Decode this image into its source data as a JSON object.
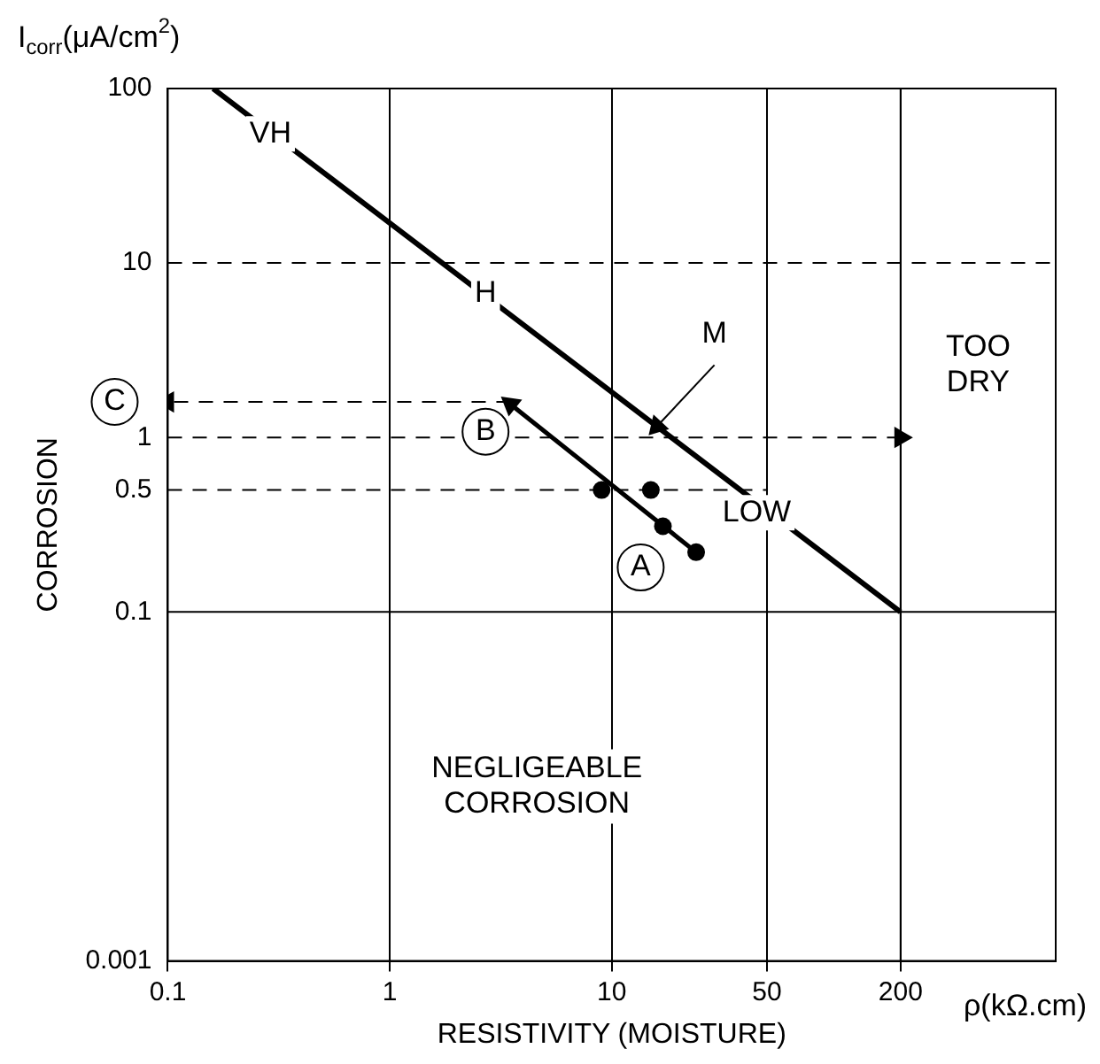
{
  "chart_data": {
    "type": "line",
    "xlabel": "RESISTIVITY (MOISTURE)",
    "ylabel": "CORROSION",
    "log": "xy",
    "xlim": [
      0.1,
      1000
    ],
    "ylim": [
      0.001,
      100
    ],
    "xticks": [
      0.1,
      1,
      10,
      50,
      200
    ],
    "yticks": [
      0.001,
      0.1,
      0.5,
      1,
      10,
      100
    ],
    "grid": "x",
    "legend": false,
    "series": [
      {
        "x": [
          0.16,
          200
        ],
        "values": [
          100,
          0.1
        ],
        "color": "#000000"
      },
      {
        "x": [
          24,
          3.5
        ],
        "values": [
          0.22,
          1.55
        ],
        "color": "#000000"
      },
      {
        "type": "scatter",
        "x": [
          9,
          15,
          17,
          24
        ],
        "values": [
          0.5,
          0.5,
          0.31,
          0.22
        ],
        "color": "#000000",
        "marker": "circle"
      },
      {
        "x": [
          29,
          16
        ],
        "values": [
          2.6,
          1.16
        ],
        "color": "#000000"
      },
      {
        "x": [
          3.5,
          0.1
        ],
        "values": [
          1.6,
          1.6
        ],
        "color": "#000000",
        "line_style": "dashed"
      },
      {
        "x": [
          0.1,
          200
        ],
        "values": [
          1,
          1
        ],
        "color": "#000000",
        "line_style": "dashed"
      },
      {
        "x": [
          0.1,
          50
        ],
        "values": [
          0.5,
          0.5
        ],
        "color": "#000000",
        "line_style": "dashed"
      }
    ],
    "ref_lines": [
      {
        "axis": "x",
        "value": 200,
        "line_style": "solid"
      },
      {
        "axis": "y",
        "value": 0.1,
        "line_style": "solid"
      },
      {
        "axis": "y",
        "value": 10,
        "line_style": "dashed"
      }
    ],
    "annotations": [
      "I$_{corr}$(μA/cm$^{2}$)",
      "ρ(kΩ.cm)",
      "C",
      "TOO\nDRY",
      "NEGLIGEABLE\nCORROSION",
      {
        "text": "VH",
        "x": 0.29,
        "y": 55
      },
      {
        "text": "H",
        "x": 2.7,
        "y": 6.7
      },
      {
        "text": "M",
        "x": 29,
        "y": 3.9
      },
      {
        "text": "LOW",
        "x": 45,
        "y": 0.37
      },
      {
        "text": "A",
        "x": 13.5,
        "y": 0.18
      },
      {
        "text": "B",
        "x": 2.7,
        "y": 1.08
      }
    ]
  }
}
